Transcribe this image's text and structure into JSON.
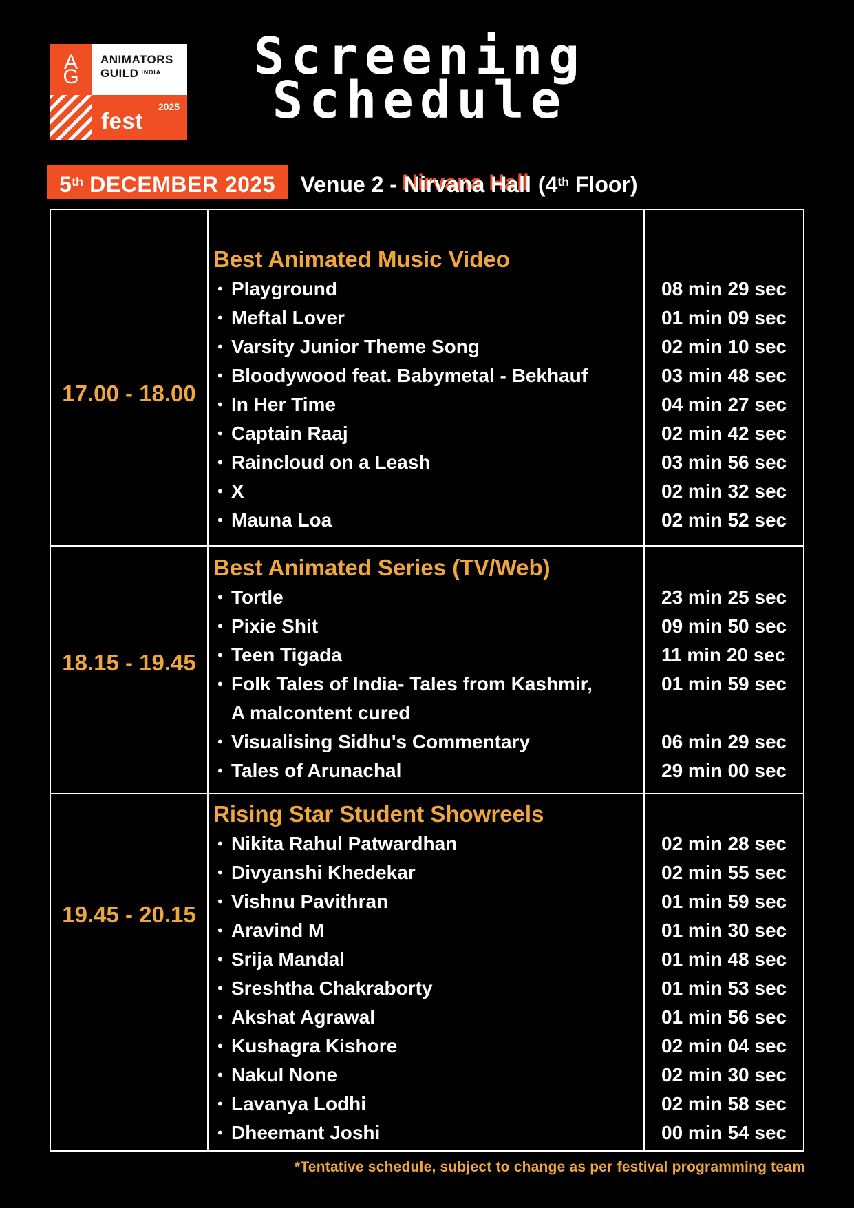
{
  "colors": {
    "orange": "#F04E23",
    "gold": "#EFA63C",
    "white": "#FFFFFF",
    "background": "#000000",
    "logo_text": "#161616"
  },
  "bullet_glyph": "•",
  "logo": {
    "monogram_top": "A",
    "monogram_bottom": "G",
    "org_line1": "ANIMATORS",
    "org_line2": "GUILD",
    "org_country": "INDIA",
    "fest_word": "fest",
    "fest_year": "2025"
  },
  "title": {
    "line1": "Screening",
    "line2": "Schedule"
  },
  "banner": {
    "date_number": "5",
    "date_ordinal": "th",
    "date_text": "DECEMBER 2025",
    "venue_prefix": "Venue 2 -",
    "venue_name": "Nirvana Hall",
    "venue_paren_open": "(4",
    "venue_ordinal": "th",
    "venue_paren_close": "Floor)"
  },
  "schedule": [
    {
      "time": "17.00 - 18.00",
      "category": "Best Animated Music Video",
      "items": [
        {
          "title": "Playground",
          "duration": "08 min 29 sec"
        },
        {
          "title": "Meftal Lover",
          "duration": "01 min 09 sec"
        },
        {
          "title": "Varsity Junior Theme Song",
          "duration": "02 min 10 sec"
        },
        {
          "title": "Bloodywood feat. Babymetal - Bekhauf",
          "duration": "03 min 48 sec"
        },
        {
          "title": "In Her Time",
          "duration": "04 min 27 sec"
        },
        {
          "title": "Captain Raaj",
          "duration": "02 min 42 sec"
        },
        {
          "title": "Raincloud on a Leash",
          "duration": "03 min 56 sec"
        },
        {
          "title": "X",
          "duration": "02 min 32 sec"
        },
        {
          "title": "Mauna Loa",
          "duration": "02 min 52 sec"
        }
      ]
    },
    {
      "time": "18.15 - 19.45",
      "category": "Best Animated Series (TV/Web)",
      "items": [
        {
          "title": "Tortle",
          "duration": "23 min 25 sec"
        },
        {
          "title": "Pixie Shit",
          "duration": "09 min 50 sec"
        },
        {
          "title": "Teen Tigada",
          "duration": "11 min 20 sec"
        },
        {
          "title": "Folk Tales of India- Tales from Kashmir,",
          "title2": "A malcontent cured",
          "duration": "01 min 59 sec"
        },
        {
          "title": "Visualising Sidhu's Commentary",
          "duration": "06 min 29 sec"
        },
        {
          "title": "Tales of Arunachal",
          "duration": "29 min 00 sec"
        }
      ]
    },
    {
      "time": "19.45 - 20.15",
      "category": "Rising Star Student Showreels",
      "items": [
        {
          "title": "Nikita Rahul Patwardhan",
          "duration": "02 min 28 sec"
        },
        {
          "title": "Divyanshi Khedekar",
          "duration": "02 min 55 sec"
        },
        {
          "title": "Vishnu Pavithran",
          "duration": "01 min 59 sec"
        },
        {
          "title": "Aravind M",
          "duration": "01 min 30 sec"
        },
        {
          "title": "Srija Mandal",
          "duration": "01 min 48 sec"
        },
        {
          "title": "Sreshtha Chakraborty",
          "duration": "01 min 53 sec"
        },
        {
          "title": "Akshat Agrawal",
          "duration": "01 min 56 sec"
        },
        {
          "title": "Kushagra Kishore",
          "duration": "02 min 04 sec"
        },
        {
          "title": "Nakul None",
          "duration": "02 min 30 sec"
        },
        {
          "title": "Lavanya Lodhi",
          "duration": "02 min 58 sec"
        },
        {
          "title": "Dheemant Joshi",
          "duration": "00 min 54 sec"
        }
      ]
    }
  ],
  "footnote": "*Tentative schedule, subject to change as per festival programming team"
}
